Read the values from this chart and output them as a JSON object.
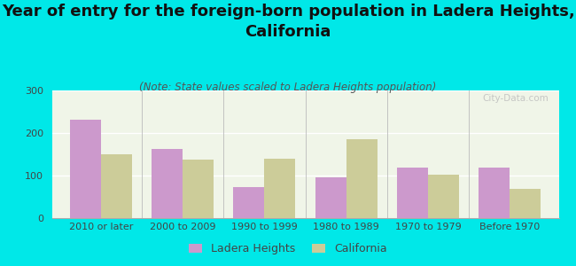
{
  "title": "Year of entry for the foreign-born population in Ladera Heights,\nCalifornia",
  "subtitle": "(Note: State values scaled to Ladera Heights population)",
  "categories": [
    "2010 or later",
    "2000 to 2009",
    "1990 to 1999",
    "1980 to 1989",
    "1970 to 1979",
    "Before 1970"
  ],
  "ladera_heights": [
    232,
    162,
    72,
    95,
    118,
    118
  ],
  "california": [
    150,
    138,
    140,
    185,
    102,
    68
  ],
  "ladera_color": "#cc99cc",
  "california_color": "#cccc99",
  "background_color": "#00e8e8",
  "plot_bg": "#f0f5e8",
  "ylim": [
    0,
    300
  ],
  "yticks": [
    0,
    100,
    200,
    300
  ],
  "bar_width": 0.38,
  "title_fontsize": 13,
  "subtitle_fontsize": 8.5,
  "tick_fontsize": 8,
  "legend_fontsize": 9
}
